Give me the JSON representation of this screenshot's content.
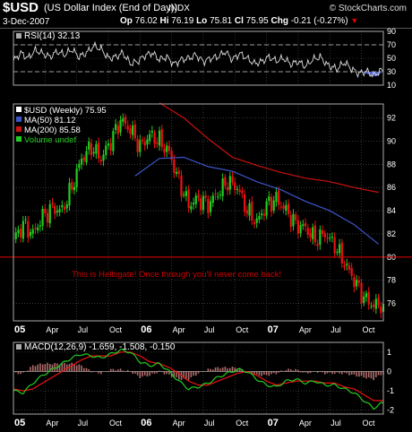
{
  "header": {
    "symbol": "$USD",
    "description": "(US Dollar Index (End of Day))",
    "exchange": "INDX",
    "date": "3-Dec-2007",
    "open_label": "Op",
    "open": "76.02",
    "high_label": "Hi",
    "high": "76.19",
    "low_label": "Lo",
    "low": "75.81",
    "close_label": "Cl",
    "close": "75.95",
    "change_label": "Chg",
    "change": "-0.21 (-0.27%)",
    "brand": "© StockCharts.com"
  },
  "colors": {
    "background": "#000000",
    "up": "#22cc22",
    "down": "#ee1111",
    "ma50": "#3e55c8",
    "ma200": "#cc1111",
    "hellsgate": "#cc0000",
    "grid": "#555555",
    "text": "#ffffff"
  },
  "chart_data": [
    {
      "type": "line",
      "panel": "RSI",
      "legend": "RSI(14) 32.13",
      "ylim": [
        10,
        90
      ],
      "yticks": [
        10,
        30,
        50,
        70,
        90
      ],
      "reference_lines": [
        30,
        70
      ],
      "x": [
        0,
        3,
        6,
        9,
        12,
        15,
        18,
        21,
        24,
        27,
        30,
        33,
        36,
        39,
        42,
        45,
        48,
        51,
        54,
        57,
        60,
        63,
        66,
        69,
        72,
        75,
        78,
        81,
        84,
        87,
        90,
        93,
        96,
        99,
        102,
        105,
        108,
        111,
        114,
        117,
        120,
        123,
        126,
        129,
        133,
        136,
        139,
        142,
        145,
        148,
        151
      ],
      "series": [
        {
          "name": "RSI",
          "values": [
            46,
            58,
            50,
            62,
            57,
            52,
            60,
            55,
            63,
            52,
            58,
            68,
            64,
            50,
            52,
            58,
            42,
            45,
            54,
            58,
            48,
            52,
            41,
            48,
            50,
            55,
            45,
            50,
            52,
            60,
            48,
            57,
            50,
            42,
            45,
            52,
            46,
            50,
            41,
            45,
            38,
            48,
            52,
            40,
            34,
            44,
            34,
            27,
            31,
            24,
            32
          ]
        }
      ]
    },
    {
      "type": "candlestick",
      "panel": "Price",
      "legend": [
        "$USD (Weekly) 75.95",
        "MA(50) 81.12",
        "MA(200) 85.58",
        "Volume undef"
      ],
      "ylim": [
        74.5,
        93.2
      ],
      "yticks": [
        76,
        78,
        80,
        82,
        84,
        86,
        88,
        90,
        92
      ],
      "x_tick_labels": [
        "05",
        "Apr",
        "Jul",
        "Oct",
        "06",
        "Apr",
        "Jul",
        "Oct",
        "07",
        "Apr",
        "Jul",
        "Oct"
      ],
      "x_tick_weeks": [
        0,
        13,
        26,
        39,
        52,
        65,
        78,
        91,
        104,
        117,
        130,
        143
      ],
      "x_range_weeks": [
        0,
        152
      ],
      "hline": 80,
      "annotation": "This is Hellsgate!  Once through you'll never come back!",
      "weeks": [
        0,
        4,
        8,
        12,
        16,
        20,
        24,
        28,
        32,
        36,
        40,
        44,
        48,
        52,
        56,
        60,
        64,
        68,
        72,
        76,
        80,
        84,
        88,
        92,
        96,
        100,
        104,
        108,
        112,
        116,
        120,
        124,
        128,
        132,
        136,
        140,
        144,
        148,
        151
      ],
      "close": [
        81.5,
        82.8,
        82.0,
        83.5,
        84.2,
        84.0,
        86.0,
        88.5,
        89.5,
        88.5,
        90.0,
        91.8,
        91.0,
        89.5,
        90.5,
        90.0,
        89.0,
        86.5,
        84.5,
        85.0,
        84.5,
        85.5,
        86.5,
        86.0,
        84.0,
        83.0,
        84.5,
        85.0,
        84.0,
        82.8,
        82.5,
        81.5,
        82.0,
        81.0,
        79.5,
        78.0,
        76.5,
        75.8,
        75.95
      ],
      "ma50": {
        "weeks": [
          0,
          10,
          20,
          30,
          40,
          50,
          60,
          70,
          80,
          90,
          100,
          110,
          120,
          130,
          140,
          150
        ],
        "values": [
          null,
          null,
          null,
          null,
          null,
          87.0,
          88.5,
          88.6,
          87.8,
          87.4,
          86.5,
          85.8,
          84.8,
          84.0,
          82.8,
          81.12
        ]
      },
      "ma200": {
        "weeks": [
          60,
          70,
          80,
          90,
          100,
          110,
          120,
          130,
          140,
          150
        ],
        "values": [
          93.3,
          92.0,
          90.2,
          88.6,
          87.9,
          87.3,
          86.8,
          86.5,
          86.0,
          85.58
        ]
      }
    },
    {
      "type": "line",
      "panel": "MACD",
      "legend": "MACD(12,26,9) -1.659, -1.508, -0.150",
      "ylim": [
        -2.2,
        1.5
      ],
      "yticks": [
        -2,
        -1,
        0,
        1
      ],
      "x": [
        0,
        4,
        8,
        12,
        16,
        20,
        24,
        28,
        32,
        36,
        40,
        44,
        48,
        52,
        56,
        60,
        64,
        68,
        72,
        76,
        80,
        84,
        88,
        92,
        96,
        100,
        104,
        108,
        112,
        116,
        120,
        124,
        128,
        132,
        136,
        140,
        144,
        148,
        151
      ],
      "series": [
        {
          "name": "MACD",
          "values": [
            -1.0,
            -1.1,
            -0.6,
            -0.2,
            0.1,
            0.4,
            0.7,
            0.9,
            0.8,
            0.7,
            0.9,
            1.1,
            1.0,
            0.5,
            0.3,
            0.4,
            0.0,
            -0.5,
            -0.9,
            -0.8,
            -0.6,
            -0.3,
            -0.1,
            0.1,
            0.0,
            -0.4,
            -0.7,
            -0.8,
            -0.5,
            -0.4,
            -0.6,
            -0.5,
            -0.7,
            -0.7,
            -0.9,
            -1.1,
            -1.5,
            -1.9,
            -1.659
          ]
        },
        {
          "name": "Signal",
          "values": [
            -0.9,
            -1.0,
            -0.9,
            -0.6,
            -0.3,
            0.0,
            0.3,
            0.6,
            0.8,
            0.8,
            0.8,
            1.0,
            1.0,
            0.8,
            0.5,
            0.4,
            0.2,
            -0.1,
            -0.5,
            -0.7,
            -0.7,
            -0.5,
            -0.3,
            -0.1,
            0.0,
            -0.2,
            -0.5,
            -0.7,
            -0.6,
            -0.5,
            -0.5,
            -0.5,
            -0.6,
            -0.6,
            -0.8,
            -0.9,
            -1.2,
            -1.5,
            -1.508
          ]
        }
      ],
      "histogram_last": -0.15
    }
  ]
}
